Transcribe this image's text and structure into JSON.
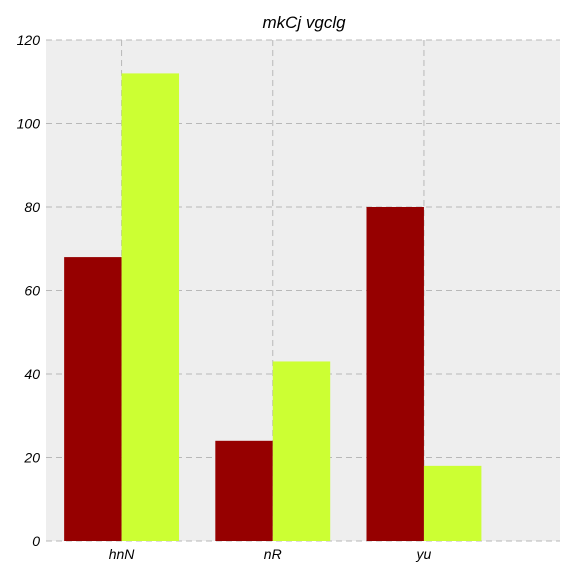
{
  "chart_data": {
    "type": "bar",
    "title": "mkCj vgclg",
    "xlabel": "",
    "ylabel": "",
    "categories": [
      "hnN",
      "nR",
      "yu"
    ],
    "series": [
      {
        "values": [
          68,
          24,
          80
        ],
        "color": "#960000"
      },
      {
        "values": [
          112,
          43,
          18
        ],
        "color": "#ccff33"
      }
    ],
    "ylim": [
      0,
      120
    ],
    "yticks": [
      0,
      20,
      40,
      60,
      80,
      100,
      120
    ],
    "grid": true,
    "background": "#eeeeee"
  }
}
